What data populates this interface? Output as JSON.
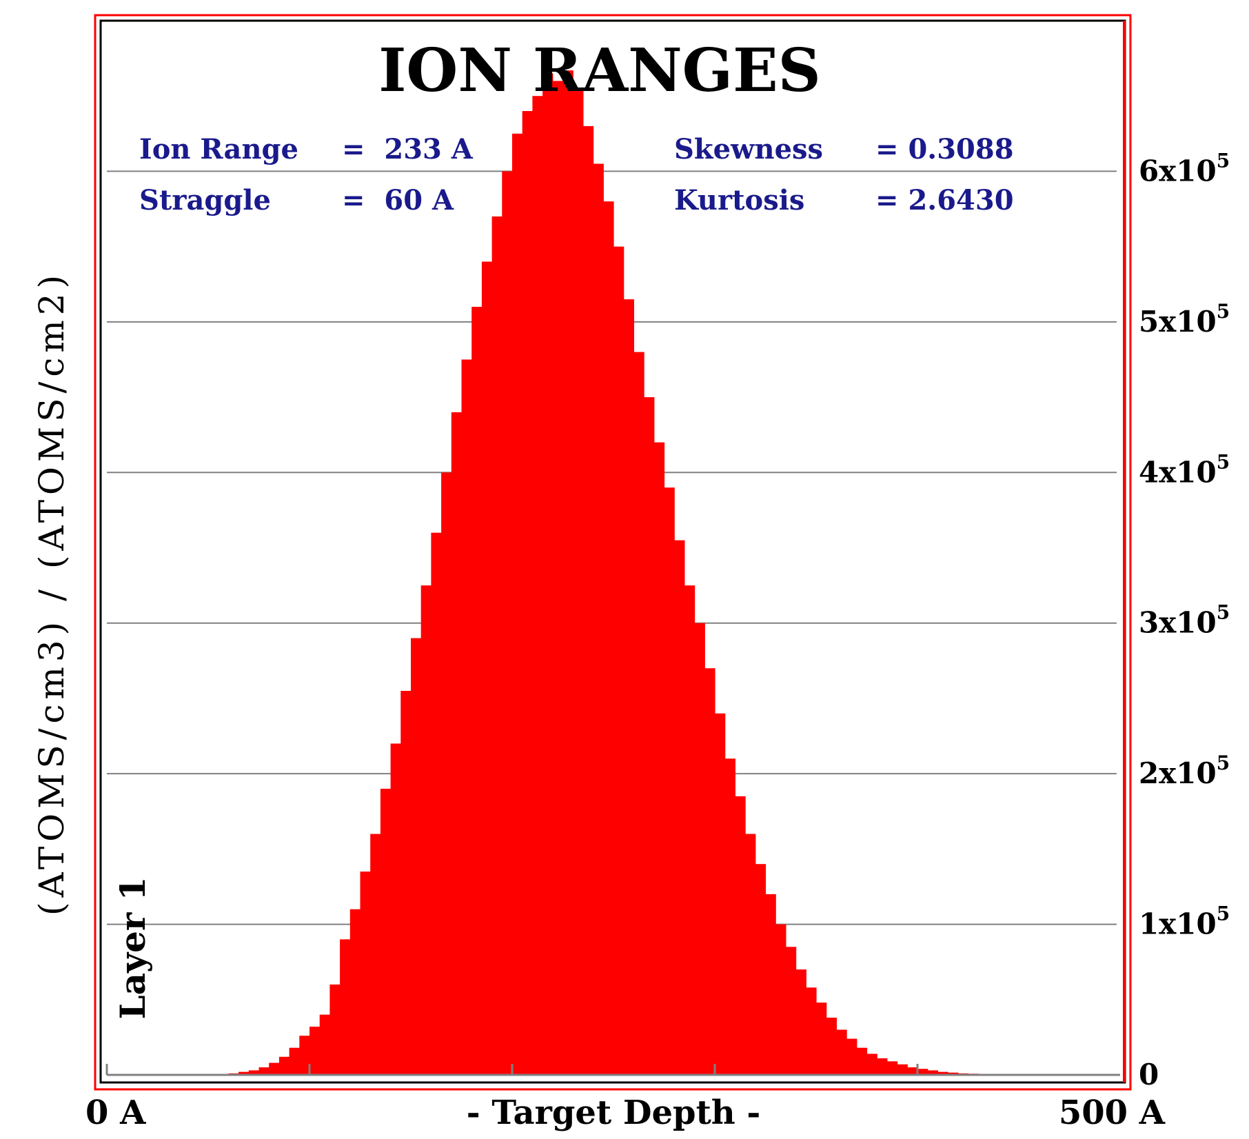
{
  "chart_data": {
    "type": "area",
    "title": "ION RANGES",
    "xlabel": "- Target Depth -",
    "ylabel": "(ATOMS/cm3) / (ATOMS/cm2)",
    "layer_label": "Layer 1",
    "x_range": [
      0,
      500
    ],
    "x_min_label": "0 A",
    "x_max_label": "500 A",
    "x_ticks": [
      0,
      100,
      200,
      300,
      400
    ],
    "ylim": [
      0,
      700000
    ],
    "y_ticks": [
      {
        "value": 0,
        "label": "0"
      },
      {
        "value": 100000,
        "mantissa": "1x10",
        "exp": "5"
      },
      {
        "value": 200000,
        "mantissa": "2x10",
        "exp": "5"
      },
      {
        "value": 300000,
        "mantissa": "3x10",
        "exp": "5"
      },
      {
        "value": 400000,
        "mantissa": "4x10",
        "exp": "5"
      },
      {
        "value": 500000,
        "mantissa": "5x10",
        "exp": "5"
      },
      {
        "value": 600000,
        "mantissa": "6x10",
        "exp": "5"
      }
    ],
    "grid": "horizontal",
    "colors": {
      "fill": "#ff0000",
      "frame": "#ff0000",
      "stats": "#1a1a8c",
      "grid": "#808080"
    },
    "stats": [
      {
        "name": "Ion Range",
        "value": "=  233 A"
      },
      {
        "name": "Straggle",
        "value": "=  60 A"
      },
      {
        "name": "Skewness",
        "value": "= 0.3088"
      },
      {
        "name": "Kurtosis",
        "value": "= 2.6430"
      }
    ],
    "bin_width": 5,
    "x": [
      0,
      5,
      10,
      15,
      20,
      25,
      30,
      35,
      40,
      45,
      50,
      55,
      60,
      65,
      70,
      75,
      80,
      85,
      90,
      95,
      100,
      105,
      110,
      115,
      120,
      125,
      130,
      135,
      140,
      145,
      150,
      155,
      160,
      165,
      170,
      175,
      180,
      185,
      190,
      195,
      200,
      205,
      210,
      215,
      220,
      225,
      230,
      235,
      240,
      245,
      250,
      255,
      260,
      265,
      270,
      275,
      280,
      285,
      290,
      295,
      300,
      305,
      310,
      315,
      320,
      325,
      330,
      335,
      340,
      345,
      350,
      355,
      360,
      365,
      370,
      375,
      380,
      385,
      390,
      395,
      400,
      405,
      410,
      415,
      420,
      425,
      430,
      435,
      440,
      445,
      450,
      455,
      460,
      465,
      470,
      475,
      480,
      485,
      490,
      495
    ],
    "values": [
      0,
      0,
      0,
      0,
      0,
      0,
      0,
      0,
      0,
      0,
      0,
      0,
      1000,
      2000,
      3000,
      5000,
      8000,
      12000,
      18000,
      26000,
      32000,
      40000,
      60000,
      90000,
      110000,
      135000,
      160000,
      190000,
      220000,
      255000,
      290000,
      325000,
      360000,
      400000,
      440000,
      475000,
      510000,
      540000,
      570000,
      600000,
      625000,
      640000,
      650000,
      665000,
      660000,
      667000,
      655000,
      630000,
      605000,
      580000,
      550000,
      515000,
      480000,
      450000,
      420000,
      390000,
      355000,
      325000,
      300000,
      270000,
      240000,
      210000,
      185000,
      160000,
      140000,
      120000,
      100000,
      85000,
      70000,
      58000,
      48000,
      38000,
      30000,
      24000,
      18000,
      14000,
      11000,
      9000,
      7000,
      5000,
      4000,
      3000,
      2000,
      1500,
      1000,
      800,
      500,
      300,
      0,
      0,
      0,
      0,
      0,
      0,
      0,
      0,
      0,
      0,
      0,
      0
    ]
  }
}
